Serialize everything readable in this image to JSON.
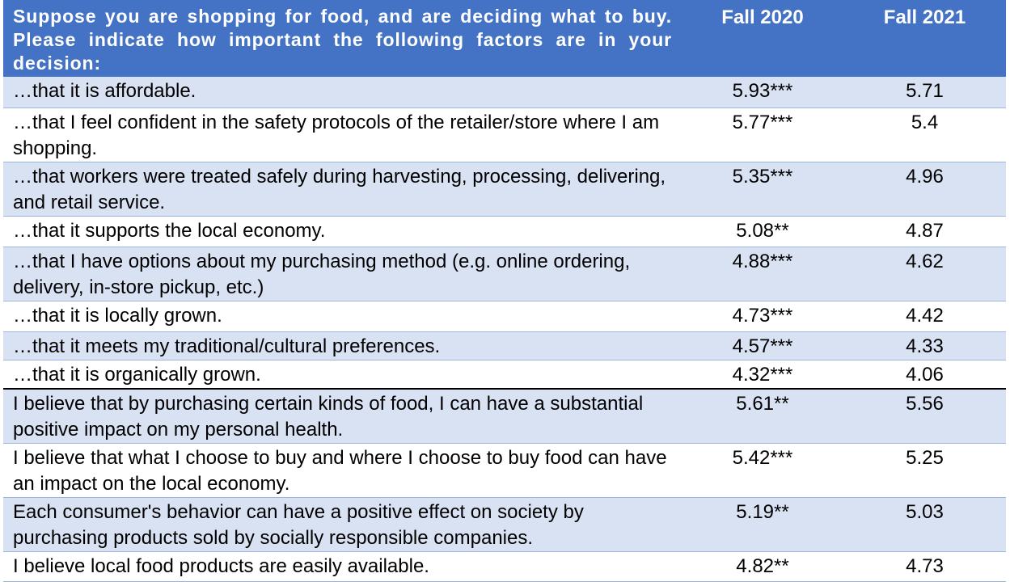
{
  "table": {
    "header": {
      "question": "Suppose you are shopping for food, and are deciding what to buy. Please indicate how important the following factors are in your decision:",
      "col1": "Fall 2020",
      "col2": "Fall 2021"
    },
    "rows": [
      {
        "label": "…that it is affordable.",
        "fall2020": "5.93***",
        "fall2021": "5.71"
      },
      {
        "label": "…that I feel confident in the safety protocols of the retailer/store where I am shopping.",
        "fall2020": "5.77***",
        "fall2021": "5.4"
      },
      {
        "label": "…that workers were treated safely during harvesting, processing, delivering, and retail service.",
        "fall2020": "5.35***",
        "fall2021": "4.96"
      },
      {
        "label": "…that it supports the local economy.",
        "fall2020": "5.08**",
        "fall2021": "4.87"
      },
      {
        "label": "…that I have options about my purchasing method (e.g. online ordering, delivery, in-store pickup, etc.)",
        "fall2020": "4.88***",
        "fall2021": "4.62"
      },
      {
        "label": "…that it is locally grown.",
        "fall2020": "4.73***",
        "fall2021": "4.42"
      },
      {
        "label": "…that it meets my traditional/cultural preferences.",
        "fall2020": "4.57***",
        "fall2021": "4.33"
      },
      {
        "label": "…that it is organically grown.",
        "fall2020": "4.32***",
        "fall2021": "4.06"
      },
      {
        "label": "I believe that by purchasing certain kinds of food, I can have a substantial positive impact on my personal health.",
        "fall2020": "5.61**",
        "fall2021": "5.56"
      },
      {
        "label": "I believe that what I choose to buy and where I choose to buy food can have an impact on the local economy.",
        "fall2020": "5.42***",
        "fall2021": "5.25"
      },
      {
        "label": "Each consumer's behavior can have a positive effect on society by purchasing products sold by socially responsible companies.",
        "fall2020": "5.19**",
        "fall2021": "5.03"
      },
      {
        "label": "I believe local food products are easily available.",
        "fall2020": "4.82**",
        "fall2021": "4.73"
      }
    ]
  },
  "colors": {
    "header_bg": "#4472c4",
    "band_bg": "#d9e2f3",
    "header_text": "#ffffff"
  }
}
